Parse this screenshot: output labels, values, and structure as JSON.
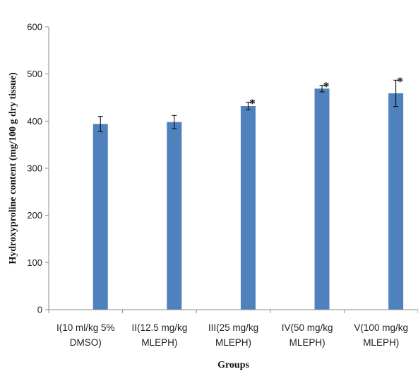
{
  "chart_data": {
    "type": "bar",
    "categories": [
      [
        "I(10 ml/kg 5%",
        "DMSO)"
      ],
      [
        "II(12.5 mg/kg",
        "MLEPH)"
      ],
      [
        "III(25 mg/kg",
        "MLEPH)"
      ],
      [
        "IV(50 mg/kg",
        "MLEPH)"
      ],
      [
        "V(100 mg/kg",
        "MLEPH)"
      ]
    ],
    "values": [
      394,
      398,
      432,
      469,
      459
    ],
    "errors": [
      16,
      14,
      8,
      7,
      28
    ],
    "significance": [
      "",
      "",
      "*",
      "*",
      "*"
    ],
    "xlabel": "Groups",
    "ylabel": "Hydroxyproline content (mg/100  g dry tissue)",
    "ylim": [
      0,
      600
    ],
    "yticks": [
      0,
      100,
      200,
      300,
      400,
      500,
      600
    ],
    "grid": false,
    "legend": "none",
    "colors": {
      "bar": "#4F81BD",
      "axis": "#8c8c8c",
      "error": "#000000"
    }
  }
}
